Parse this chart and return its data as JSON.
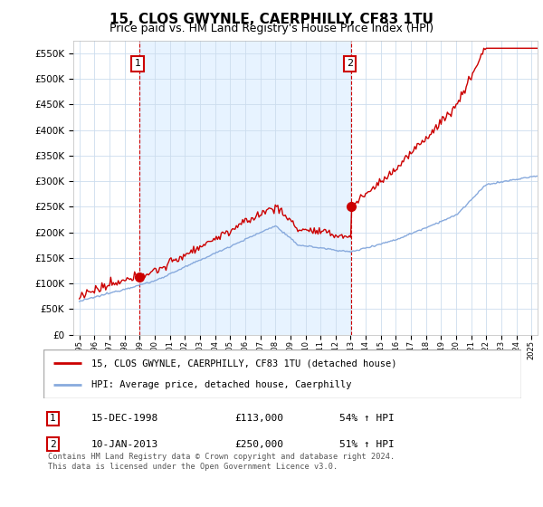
{
  "title": "15, CLOS GWYNLE, CAERPHILLY, CF83 1TU",
  "subtitle": "Price paid vs. HM Land Registry's House Price Index (HPI)",
  "ylim": [
    0,
    575000
  ],
  "yticks": [
    0,
    50000,
    100000,
    150000,
    200000,
    250000,
    300000,
    350000,
    400000,
    450000,
    500000,
    550000
  ],
  "ytick_labels": [
    "£0",
    "£50K",
    "£100K",
    "£150K",
    "£200K",
    "£250K",
    "£300K",
    "£350K",
    "£400K",
    "£450K",
    "£500K",
    "£550K"
  ],
  "sale1_date": 1998.958,
  "sale1_price": 113000,
  "sale2_date": 2013.033,
  "sale2_price": 250000,
  "red_line_color": "#cc0000",
  "blue_line_color": "#88aadd",
  "blue_fill_color": "#ddeeff",
  "vline_color": "#cc0000",
  "legend_red_label": "15, CLOS GWYNLE, CAERPHILLY, CF83 1TU (detached house)",
  "legend_blue_label": "HPI: Average price, detached house, Caerphilly",
  "table_row1": [
    "1",
    "15-DEC-1998",
    "£113,000",
    "54% ↑ HPI"
  ],
  "table_row2": [
    "2",
    "10-JAN-2013",
    "£250,000",
    "51% ↑ HPI"
  ],
  "footer": "Contains HM Land Registry data © Crown copyright and database right 2024.\nThis data is licensed under the Open Government Licence v3.0.",
  "bg_color": "#ffffff",
  "grid_color": "#ccddee",
  "title_fontsize": 11,
  "subtitle_fontsize": 9,
  "axis_fontsize": 7.5
}
